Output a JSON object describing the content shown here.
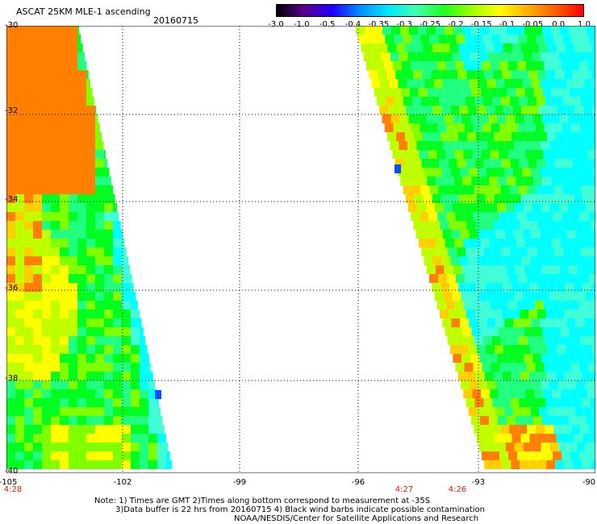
{
  "header": {
    "title": "ASCAT 25KM MLE-1 ascending",
    "date": "20160715"
  },
  "colorbar": {
    "labels": [
      "-3.0",
      "-1.0",
      "-0.5",
      "-0.4",
      "-0.35",
      "-0.3",
      "-0.25",
      "-0.2",
      "-0.15",
      "-0.1",
      "-0.05",
      "0.0",
      "1.0"
    ],
    "colors": [
      "#000000",
      "#5a0090",
      "#2000ff",
      "#0090ff",
      "#00e8ff",
      "#40ffb0",
      "#20ff20",
      "#a0ff00",
      "#ffff00",
      "#ffb000",
      "#ff6000",
      "#ff0000"
    ]
  },
  "map": {
    "lat_labels": [
      "-30",
      "-32",
      "-34",
      "-36",
      "-38",
      "-40"
    ],
    "lon_labels": [
      "-105",
      "-102",
      "-99",
      "-96",
      "-93",
      "-90"
    ],
    "time_labels": [
      "4:28",
      "4:27",
      "4:26"
    ],
    "colors": {
      "cyan": "#00ffff",
      "cyan_light": "#40ffd8",
      "green_cyan": "#20ff80",
      "green": "#00ff20",
      "lime": "#80ff00",
      "yellow_green": "#c0ff00",
      "yellow": "#ffff00",
      "gold": "#ffd000",
      "orange": "#ff8000",
      "blue": "#0050ff"
    }
  },
  "footer": {
    "line1": "Note: 1) Times are GMT 2)Times along bottom correspond to measurement at -35S",
    "line2": "3)Data buffer is 22 hrs from 20160715 4) Black wind barbs indicate possible contamination",
    "line3": "NOAA/NESDIS/Center for Satellite Applications and Research"
  }
}
